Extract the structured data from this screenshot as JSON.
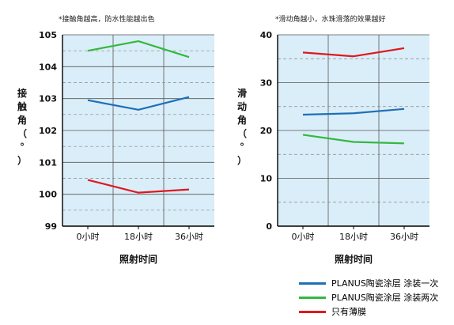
{
  "notes": {
    "left": "*接触角越高，防水性能越出色",
    "right": "*滑动角越小，水珠滑落的效果越好"
  },
  "colors": {
    "plot_background": "#daeef9",
    "series_blue": "#1f6fb8",
    "series_green": "#35b83e",
    "series_red": "#e0181f"
  },
  "legend": [
    {
      "label": "PLANUS陶瓷涂层 涂装一次",
      "color": "#1f6fb8"
    },
    {
      "label": "PLANUS陶瓷涂层 涂装两次",
      "color": "#35b83e"
    },
    {
      "label": "只有薄膜",
      "color": "#e0181f"
    }
  ],
  "chart_data": [
    {
      "type": "line",
      "categories": [
        "0小时",
        "18小时",
        "36小时"
      ],
      "ylabel": "接触角（°）",
      "xlabel": "照射时间",
      "ylim": [
        99,
        105
      ],
      "yticks": [
        "99",
        "100",
        "101",
        "102",
        "103",
        "104",
        "105"
      ],
      "grid": true,
      "series": [
        {
          "name": "PLANUS陶瓷涂层 涂装一次",
          "color": "#1f6fb8",
          "values": [
            102.95,
            102.65,
            103.05
          ]
        },
        {
          "name": "PLANUS陶瓷涂层 涂装两次",
          "color": "#35b83e",
          "values": [
            104.5,
            104.8,
            104.3
          ]
        },
        {
          "name": "只有薄膜",
          "color": "#e0181f",
          "values": [
            100.45,
            100.05,
            100.15
          ]
        }
      ]
    },
    {
      "type": "line",
      "categories": [
        "0小时",
        "18小时",
        "36小时"
      ],
      "ylabel": "滑动角（°）",
      "xlabel": "照射时间",
      "ylim": [
        0,
        40
      ],
      "yticks": [
        "0",
        "10",
        "20",
        "30",
        "40"
      ],
      "grid": true,
      "series": [
        {
          "name": "PLANUS陶瓷涂层 涂装一次",
          "color": "#1f6fb8",
          "values": [
            23.3,
            23.6,
            24.5
          ]
        },
        {
          "name": "PLANUS陶瓷涂层 涂装两次",
          "color": "#35b83e",
          "values": [
            19.1,
            17.6,
            17.3
          ]
        },
        {
          "name": "只有薄膜",
          "color": "#e0181f",
          "values": [
            36.3,
            35.5,
            37.2
          ]
        }
      ]
    }
  ]
}
